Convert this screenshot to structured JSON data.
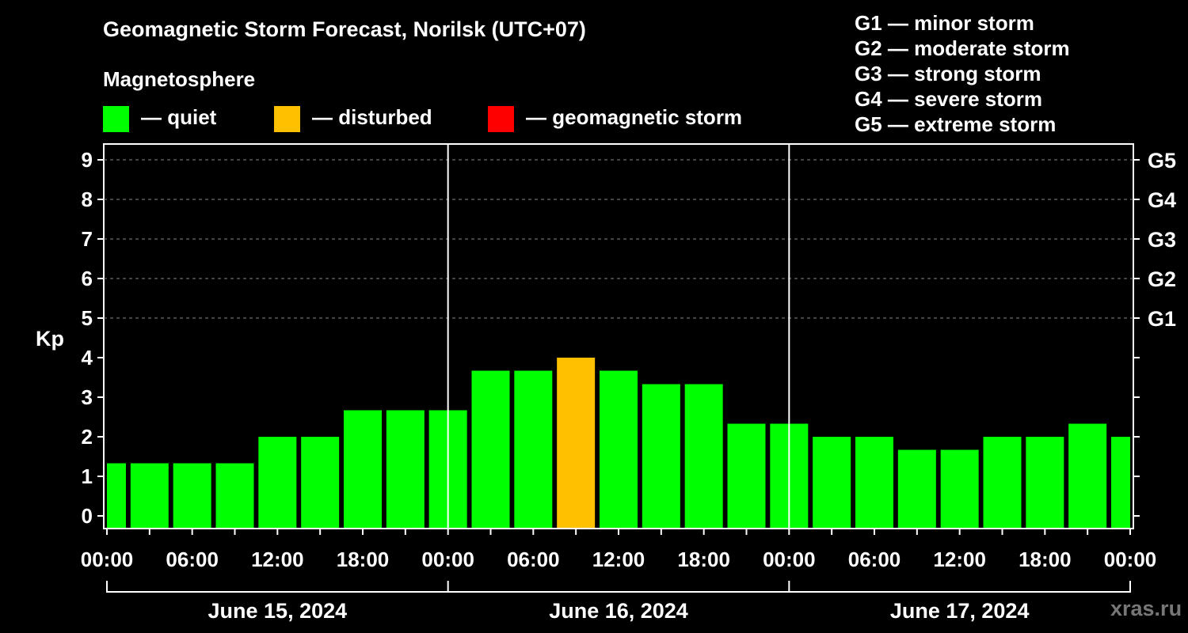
{
  "header": {
    "title": "Geomagnetic Storm Forecast, Norilsk (UTC+07)",
    "subtitle": "Magnetosphere"
  },
  "legend": {
    "items": [
      {
        "label": "— quiet",
        "color": "#00ff00"
      },
      {
        "label": "— disturbed",
        "color": "#ffc000"
      },
      {
        "label": "— geomagnetic storm",
        "color": "#ff0000"
      }
    ]
  },
  "storm_scale": {
    "items": [
      "G1 — minor storm",
      "G2 — moderate storm",
      "G3 — strong storm",
      "G4 — severe storm",
      "G5 — extreme storm"
    ]
  },
  "watermark": "xras.ru",
  "chart_data": {
    "type": "bar",
    "ylabel": "Kp",
    "ylim": [
      0,
      9
    ],
    "yticks": [
      "0",
      "1",
      "2",
      "3",
      "4",
      "5",
      "6",
      "7",
      "8",
      "9"
    ],
    "right_axis_labels": [
      {
        "value": 5,
        "label": "G1"
      },
      {
        "value": 6,
        "label": "G2"
      },
      {
        "value": 7,
        "label": "G3"
      },
      {
        "value": 8,
        "label": "G4"
      },
      {
        "value": 9,
        "label": "G5"
      }
    ],
    "xtick_labels": [
      "00:00",
      "06:00",
      "12:00",
      "18:00",
      "00:00",
      "06:00",
      "12:00",
      "18:00",
      "00:00",
      "06:00",
      "12:00",
      "18:00",
      "00:00"
    ],
    "dates": [
      "June 15, 2024",
      "June 16, 2024",
      "June 17, 2024"
    ],
    "grid": "dashed horizontal",
    "x_hours": [
      0,
      3,
      6,
      9,
      12,
      15,
      18,
      21,
      24,
      27,
      30,
      33,
      36,
      39,
      42,
      45,
      48,
      51,
      54,
      57,
      60,
      63,
      66,
      69,
      72
    ],
    "values": [
      1.33,
      1.33,
      1.33,
      1.33,
      2.0,
      2.0,
      2.67,
      2.67,
      2.67,
      3.67,
      3.67,
      4.0,
      3.67,
      3.33,
      3.33,
      2.33,
      2.33,
      2.0,
      2.0,
      1.67,
      1.67,
      2.0,
      2.0,
      2.33,
      2.0
    ],
    "categories": [
      "quiet",
      "quiet",
      "quiet",
      "quiet",
      "quiet",
      "quiet",
      "quiet",
      "quiet",
      "quiet",
      "quiet",
      "quiet",
      "disturbed",
      "quiet",
      "quiet",
      "quiet",
      "quiet",
      "quiet",
      "quiet",
      "quiet",
      "quiet",
      "quiet",
      "quiet",
      "quiet",
      "quiet",
      "quiet"
    ],
    "colors": {
      "quiet": "#00ff00",
      "disturbed": "#ffc000",
      "storm": "#ff0000"
    }
  }
}
